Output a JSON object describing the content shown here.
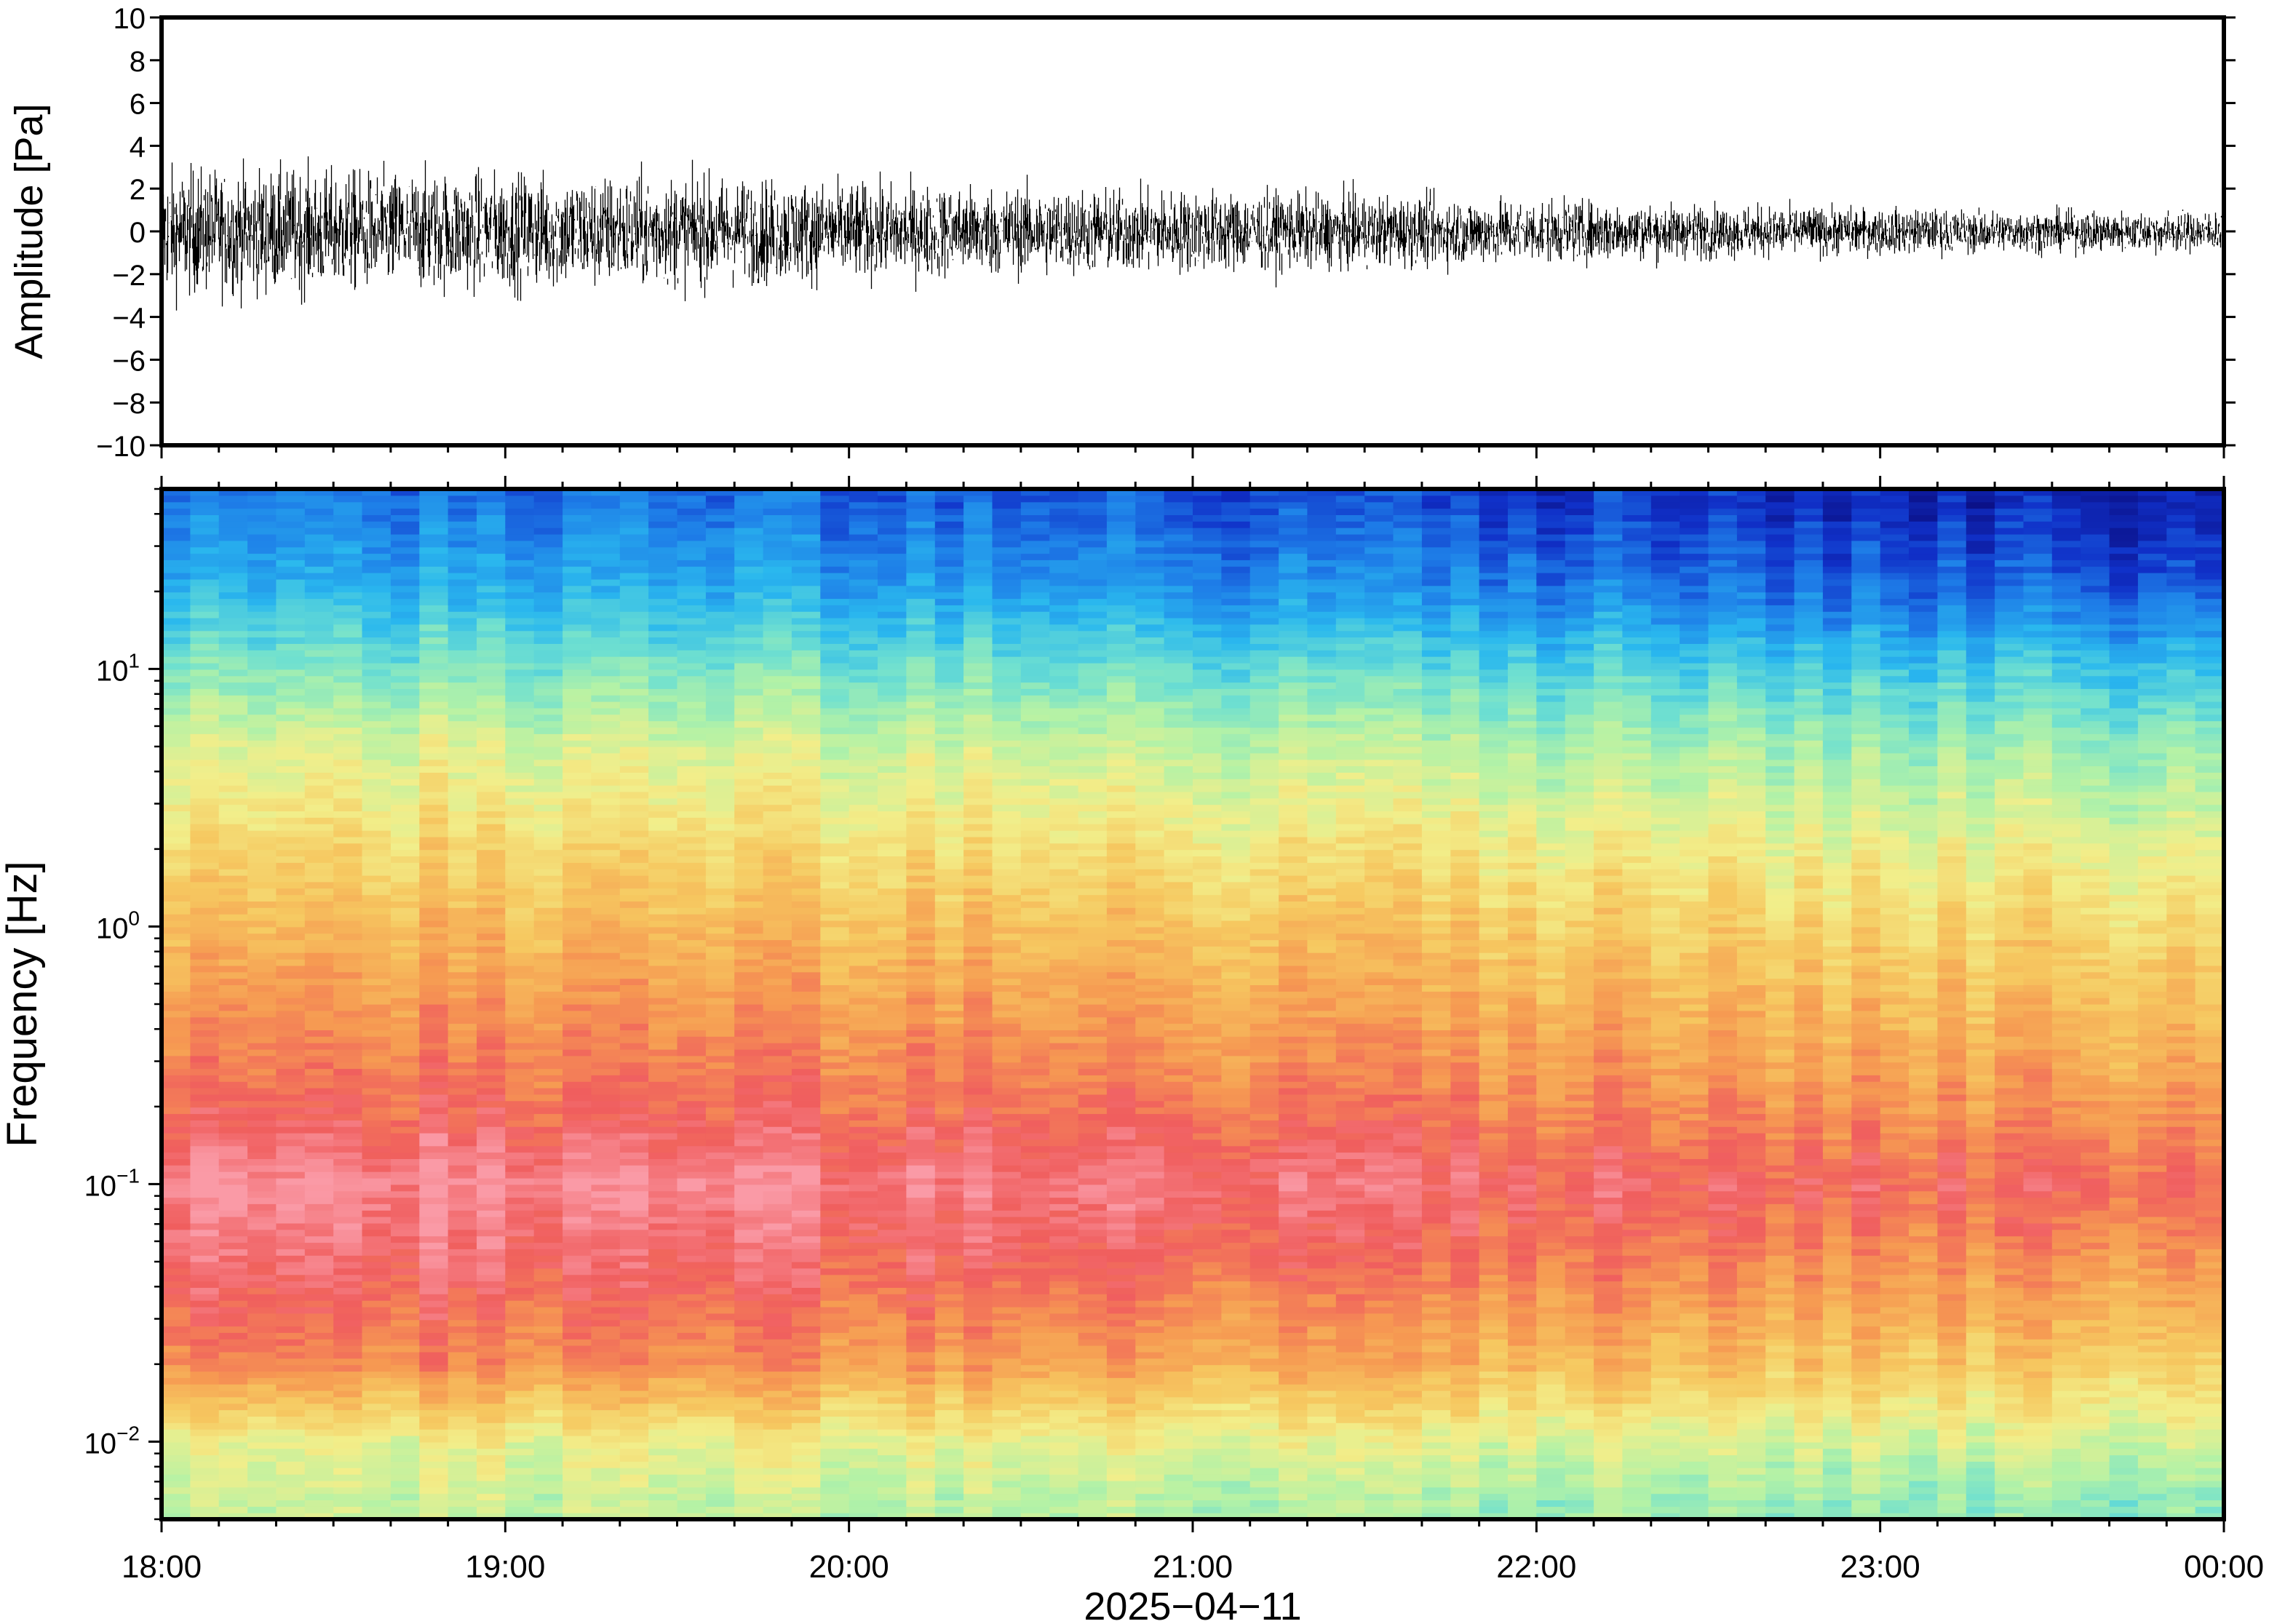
{
  "chart_data": [
    {
      "type": "line",
      "title": "",
      "xlabel": "",
      "ylabel": "Amplitude [Pa]",
      "ylim": [
        -10,
        10
      ],
      "y_ticks": [
        -10,
        -8,
        -6,
        -4,
        -2,
        0,
        2,
        4,
        6,
        8,
        10
      ],
      "y_tick_labels": [
        "−10",
        "−8",
        "−6",
        "−4",
        "−2",
        "0",
        "2",
        "4",
        "6",
        "8",
        "10"
      ],
      "x_range": [
        "2025-04-11 18:00",
        "2025-04-12 00:00"
      ],
      "envelope": {
        "time_hours": [
          18.0,
          18.5,
          19.0,
          19.5,
          20.0,
          20.5,
          21.0,
          21.5,
          22.0,
          22.5,
          23.0,
          23.5,
          24.0
        ],
        "typical_abs_amplitude": [
          2.6,
          2.5,
          2.4,
          2.3,
          2.0,
          1.8,
          1.7,
          1.5,
          1.3,
          1.1,
          0.95,
          0.85,
          0.85
        ],
        "peak_positive": [
          3.4,
          3.7,
          3.7,
          3.4,
          2.8,
          2.8,
          2.9,
          2.9,
          2.1,
          2.2,
          1.3,
          1.4,
          1.3
        ],
        "peak_negative": [
          -5.5,
          -4.5,
          -3.8,
          -3.4,
          -3.2,
          -3.3,
          -3.1,
          -3.4,
          -2.2,
          -2.4,
          -1.8,
          -1.3,
          -1.3
        ]
      },
      "line_color": "#000000",
      "grid": false
    },
    {
      "type": "heatmap",
      "title": "",
      "xlabel": "2025−04−11",
      "ylabel": "Frequency [Hz]",
      "y_scale": "log",
      "ylim": [
        0.005,
        50
      ],
      "y_ticks": [
        0.01,
        0.1,
        1,
        10
      ],
      "y_tick_labels": [
        {
          "base": "10",
          "exp": "−2"
        },
        {
          "base": "10",
          "exp": "−1"
        },
        {
          "base": "10",
          "exp": "0"
        },
        {
          "base": "10",
          "exp": "1"
        }
      ],
      "x_ticks": [
        "18:00",
        "19:00",
        "20:00",
        "21:00",
        "22:00",
        "23:00",
        "00:00"
      ],
      "colormap": [
        "#0a0a7a",
        "#1030c8",
        "#1e7ee8",
        "#2ab8ee",
        "#6fe0d0",
        "#b4f2a6",
        "#f2ee8a",
        "#f6c860",
        "#f69a52",
        "#f05e5e",
        "#fa9aa6"
      ],
      "relative_power": {
        "frequency_hz": [
          0.006,
          0.01,
          0.02,
          0.05,
          0.1,
          0.2,
          0.5,
          1,
          2,
          5,
          10,
          20,
          45
        ],
        "level_18h": [
          0.55,
          0.6,
          0.85,
          0.95,
          1.0,
          0.9,
          0.82,
          0.75,
          0.68,
          0.58,
          0.45,
          0.32,
          0.22
        ],
        "level_00h": [
          0.45,
          0.55,
          0.68,
          0.8,
          0.88,
          0.8,
          0.72,
          0.66,
          0.58,
          0.46,
          0.33,
          0.16,
          0.06
        ]
      },
      "grid": false
    }
  ]
}
